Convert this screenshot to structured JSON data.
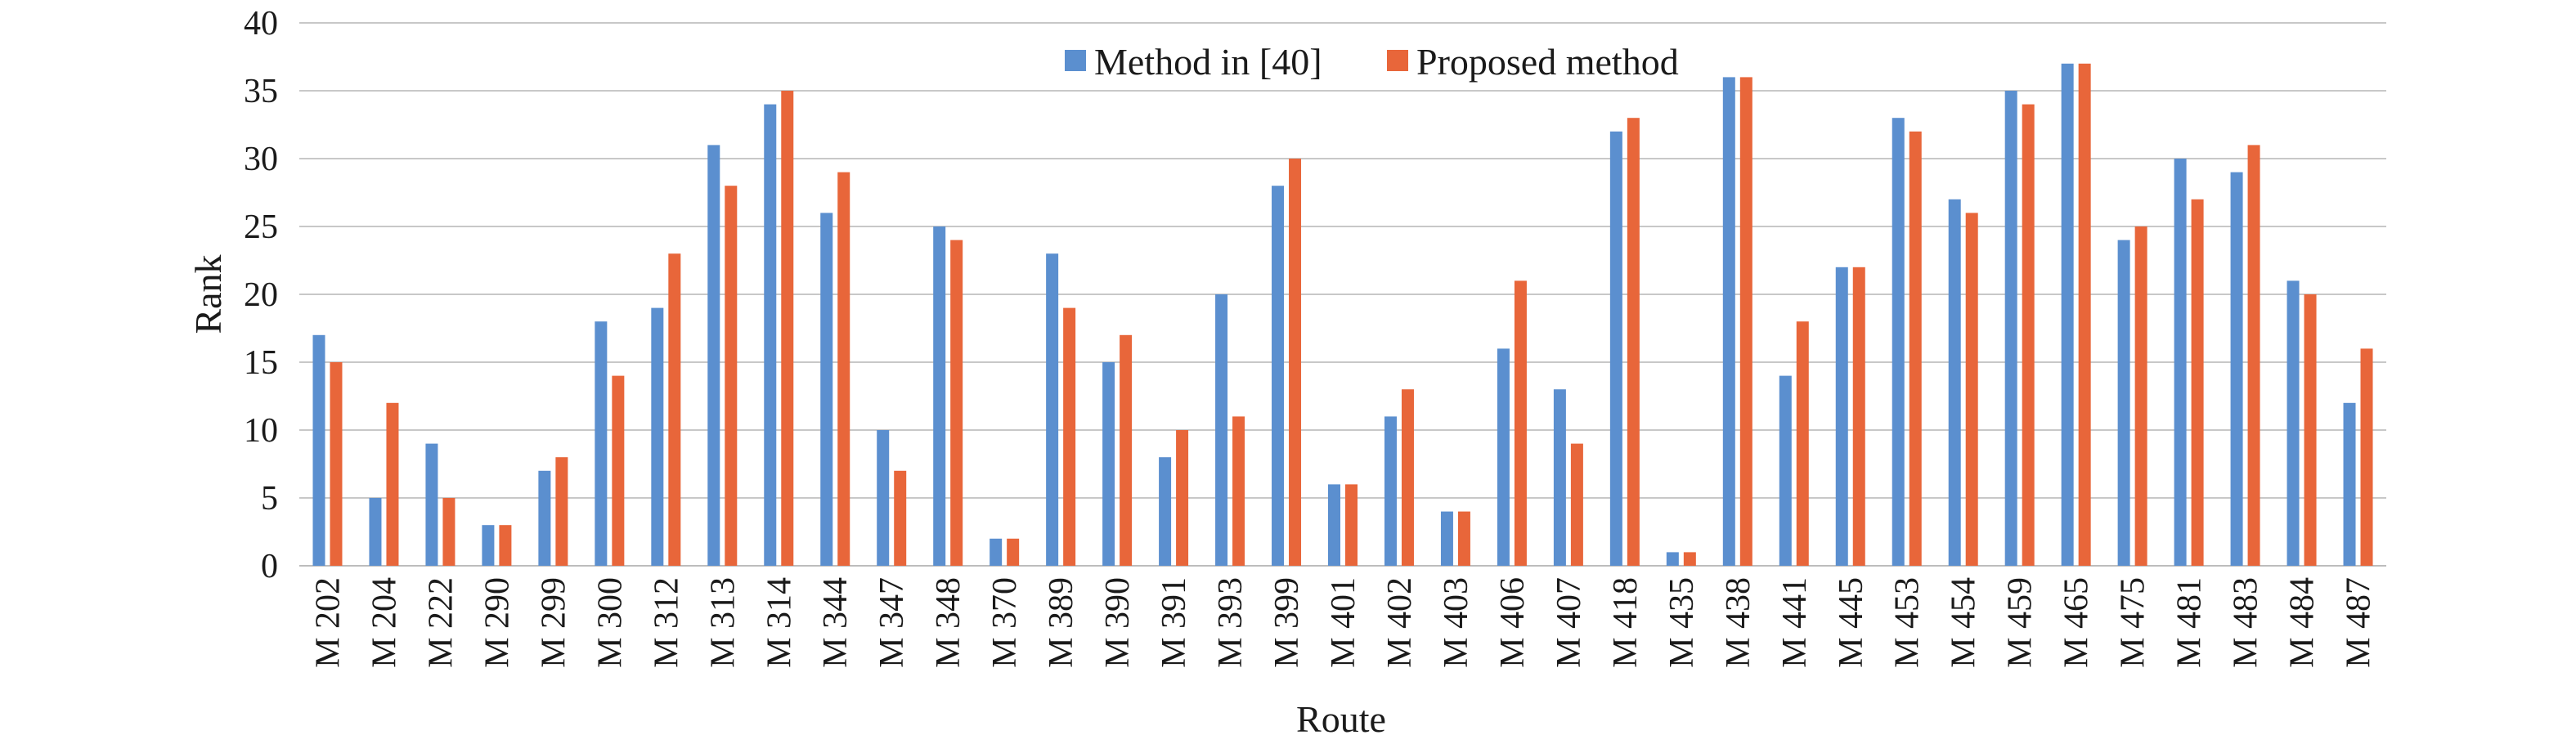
{
  "chart_data": {
    "type": "bar",
    "title": "",
    "xlabel": "Route",
    "ylabel": "Rank",
    "ylim": [
      0,
      40
    ],
    "yticks": [
      0,
      5,
      10,
      15,
      20,
      25,
      30,
      35,
      40
    ],
    "grid": true,
    "legend_position": "top-center",
    "categories": [
      "M 202",
      "M 204",
      "M 222",
      "M 290",
      "M 299",
      "M 300",
      "M 312",
      "M 313",
      "M 314",
      "M 344",
      "M 347",
      "M 348",
      "M 370",
      "M 389",
      "M 390",
      "M 391",
      "M 393",
      "M 399",
      "M 401",
      "M 402",
      "M 403",
      "M 406",
      "M 407",
      "M 418",
      "M 435",
      "M 438",
      "M 441",
      "M 445",
      "M 453",
      "M 454",
      "M 459",
      "M 465",
      "M 475",
      "M 481",
      "M 483",
      "M 484",
      "M 487"
    ],
    "series": [
      {
        "name": "Method in [40]",
        "color": "#5b8fcf",
        "values": [
          17,
          5,
          9,
          3,
          7,
          18,
          19,
          31,
          34,
          26,
          10,
          25,
          2,
          23,
          15,
          8,
          20,
          28,
          6,
          11,
          4,
          16,
          13,
          32,
          1,
          36,
          14,
          22,
          33,
          27,
          35,
          37,
          24,
          30,
          29,
          21,
          12
        ]
      },
      {
        "name": "Proposed method",
        "color": "#e8663a",
        "values": [
          15,
          12,
          5,
          3,
          8,
          14,
          23,
          28,
          35,
          29,
          7,
          24,
          2,
          19,
          17,
          10,
          11,
          30,
          6,
          13,
          4,
          21,
          9,
          33,
          1,
          36,
          18,
          22,
          32,
          26,
          34,
          37,
          25,
          27,
          31,
          20,
          16
        ]
      }
    ]
  }
}
